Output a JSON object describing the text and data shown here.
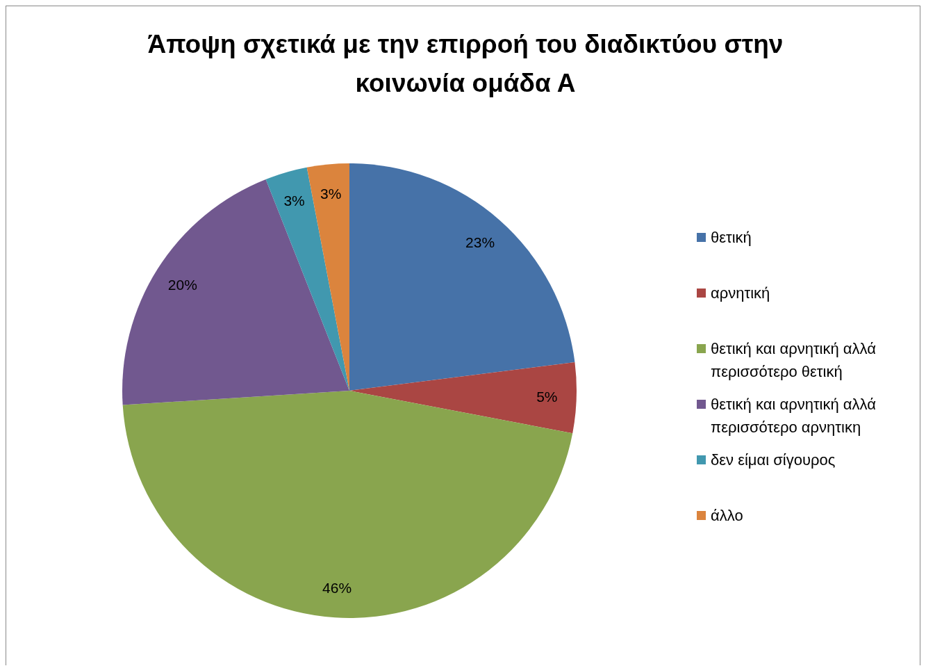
{
  "chart_data": {
    "type": "pie",
    "title": "Άποψη σχετικά με την επιρροή του διαδικτύου στην κοινωνία ομάδα Α",
    "categories": [
      "θετική",
      "αρνητική",
      "θετική και αρνητική αλλά περισσότερο θετική",
      "θετική και αρνητική αλλά περισσότερο αρνητικη",
      "δεν είμαι σίγουρος",
      "άλλο"
    ],
    "values": [
      23,
      5,
      46,
      20,
      3,
      3
    ],
    "colors": [
      "#4672a8",
      "#aa4643",
      "#89a54e",
      "#71588f",
      "#4198af",
      "#db843d"
    ],
    "value_labels": [
      "23%",
      "5%",
      "46%",
      "20%",
      "3%",
      "3%"
    ],
    "legend": "right"
  }
}
